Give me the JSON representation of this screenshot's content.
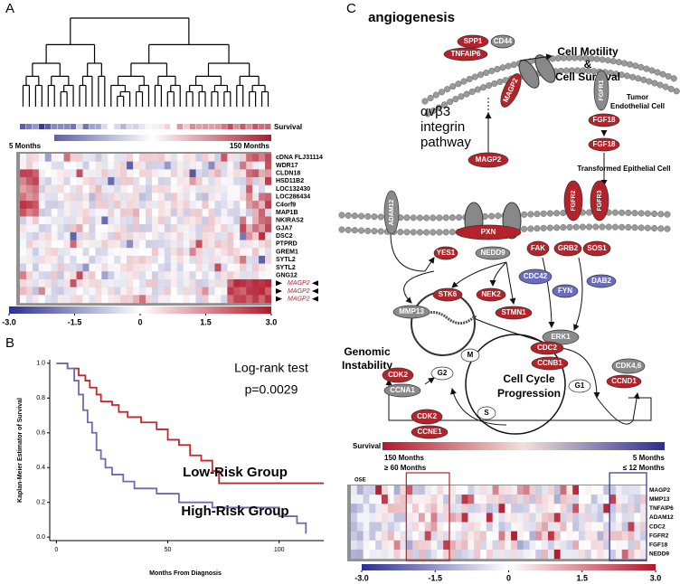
{
  "panel_a": {
    "label": "A",
    "survival_label": "Survival",
    "scale_left": "5 Months",
    "scale_right": "150 Months",
    "genes": [
      "cDNA FLJ31114",
      "WDR17",
      "CLDN18",
      "HSD11B2",
      "LOC132430",
      "LOC286434",
      "C4orf9",
      "MAP1B",
      "NKIRAS2",
      "GJA7",
      "DSC2",
      "PTPRD",
      "GREM1",
      "SYTL2",
      "SYTL2",
      "GNG12",
      "MAGP2",
      "MAGP2",
      "MAGP2"
    ],
    "colorbar_ticks": [
      {
        "value": -3.0,
        "label": "-3.0"
      },
      {
        "value": -1.5,
        "label": "-1.5"
      },
      0,
      {
        "value": 1.5,
        "label": "1.5"
      },
      {
        "value": 3.0,
        "label": "3.0"
      }
    ],
    "colorbar_lim": [
      -3,
      3
    ]
  },
  "panel_b": {
    "label": "B",
    "chart_data": {
      "type": "line",
      "ylabel": "Kaplan-Meier Estimator of Survival",
      "xlabel": "Months From Diagnosis",
      "annotations": [
        "Log-rank test",
        "p=0.0029"
      ],
      "xlim": [
        -3,
        120
      ],
      "ylim": [
        -0.02,
        1.02
      ],
      "xticks": [
        0,
        50,
        100
      ],
      "yticks": [
        {
          "value": 0,
          "label": "0.0"
        },
        {
          "value": 0.2,
          "label": "0.2"
        },
        {
          "value": 0.4,
          "label": "0.4"
        },
        {
          "value": 0.6,
          "label": "0.6"
        },
        {
          "value": 0.8,
          "label": "0.8"
        },
        {
          "value": 1,
          "label": "1.0"
        }
      ],
      "series": [
        {
          "name": "Low-Risk Group",
          "color": "#c0272d",
          "x": [
            0,
            5,
            10,
            13,
            15,
            18,
            20,
            25,
            28,
            32,
            38,
            45,
            50,
            55,
            60,
            65,
            70,
            73,
            120
          ],
          "values": [
            1,
            0.97,
            0.93,
            0.9,
            0.86,
            0.82,
            0.78,
            0.76,
            0.72,
            0.69,
            0.66,
            0.62,
            0.56,
            0.53,
            0.47,
            0.44,
            0.38,
            0.31,
            0.31
          ]
        },
        {
          "name": "High-Risk Group",
          "color": "#6b6bb5",
          "x": [
            0,
            5,
            8,
            10,
            12,
            14,
            16,
            18,
            20,
            22,
            25,
            30,
            35,
            45,
            55,
            70,
            100,
            108,
            112
          ],
          "values": [
            1,
            0.97,
            0.9,
            0.82,
            0.73,
            0.66,
            0.6,
            0.5,
            0.45,
            0.4,
            0.36,
            0.32,
            0.28,
            0.25,
            0.2,
            0.17,
            0.12,
            0.08,
            0.02
          ]
        }
      ]
    }
  },
  "panel_c": {
    "label": "C",
    "texts": [
      "angiogenesis",
      "Cell Motility",
      "&",
      "Cell Survival",
      "Tumor",
      "Endothelial Cell",
      "αvβ3",
      "integrin",
      "pathway",
      "Transformed Epithelial Cell",
      "Genomic",
      "Instability",
      "Cell Cycle",
      "Progression"
    ],
    "nodes": [
      {
        "label": "SPP1",
        "color": "#b5232a"
      },
      {
        "label": "TNFAIP6",
        "color": "#b5232a"
      },
      {
        "label": "CD44",
        "color": "#8a8a8a"
      },
      {
        "label": "MAGP2",
        "color": "#b5232a"
      },
      {
        "label": "FGFR1",
        "color": "#8a8a8a"
      },
      {
        "label": "FGF18",
        "color": "#b5232a"
      },
      {
        "label": "FGF18",
        "color": "#b5232a"
      },
      {
        "label": "MAGP2",
        "color": "#b5232a"
      },
      {
        "label": "ADAM12",
        "color": "#8a8a8a"
      },
      {
        "label": "FGFR2",
        "color": "#b5232a"
      },
      {
        "label": "FGFR3",
        "color": "#b5232a"
      },
      {
        "label": "PXN",
        "color": "#b5232a"
      },
      {
        "label": "YES1",
        "color": "#b5232a"
      },
      {
        "label": "NEDD9",
        "color": "#8a8a8a"
      },
      {
        "label": "FAK",
        "color": "#b5232a"
      },
      {
        "label": "GRB2",
        "color": "#b5232a"
      },
      {
        "label": "SOS1",
        "color": "#b5232a"
      },
      {
        "label": "CDC42",
        "color": "#6b6bc0"
      },
      {
        "label": "FYN",
        "color": "#6b6bc0"
      },
      {
        "label": "DAB2",
        "color": "#6b6bc0"
      },
      {
        "label": "STK6",
        "color": "#b5232a"
      },
      {
        "label": "NEK2",
        "color": "#b5232a"
      },
      {
        "label": "STMN1",
        "color": "#b5232a"
      },
      {
        "label": "MMP13",
        "color": "#8a8a8a"
      },
      {
        "label": "ERK1",
        "color": "#8a8a8a"
      },
      {
        "label": "CDC2",
        "color": "#b5232a"
      },
      {
        "label": "CCNB1",
        "color": "#b5232a"
      },
      {
        "label": "CDK2",
        "color": "#b5232a"
      },
      {
        "label": "CCNA1",
        "color": "#8a8a8a"
      },
      {
        "label": "CDK4,6",
        "color": "#8a8a8a"
      },
      {
        "label": "CCND1",
        "color": "#b5232a"
      },
      {
        "label": "CDK2",
        "color": "#b5232a"
      },
      {
        "label": "CCNE1",
        "color": "#b5232a"
      },
      {
        "label": "M",
        "color": "#ffffff"
      },
      {
        "label": "G2",
        "color": "#ffffff"
      },
      {
        "label": "G1",
        "color": "#ffffff"
      },
      {
        "label": "S",
        "color": "#ffffff"
      }
    ],
    "survival_label": "Survival",
    "left_label": "150 Months",
    "left_sub": "≥ 60 Months",
    "right_label": "5 Months",
    "right_sub": "≤ 12 Months",
    "ose": "OSE",
    "genes": [
      "MAGP2",
      "MMP13",
      "TNFAIP6",
      "ADAM12",
      "CDC2",
      "FGFR2",
      "FGF18",
      "NEDD9"
    ],
    "colorbar_ticks": [
      {
        "value": -3.0,
        "label": "-3.0"
      },
      {
        "value": -1.5,
        "label": "-1.5"
      },
      0,
      {
        "value": 1.5,
        "label": "1.5"
      },
      {
        "value": 3.0,
        "label": "3.0"
      }
    ],
    "colorbar_lim": [
      -3,
      3
    ]
  }
}
